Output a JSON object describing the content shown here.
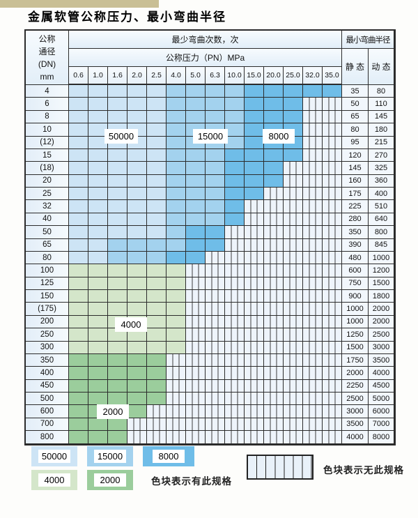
{
  "page": {
    "title": "金属软管公称压力、最小弯曲半径"
  },
  "table": {
    "header": {
      "dn_lines": [
        "公称",
        "通径",
        "(DN)",
        "mm"
      ],
      "cycles": "最少弯曲次数，次",
      "pressure": "公称压力（PN）MPa",
      "radius": "最小弯曲半径",
      "static": "静 态",
      "dynamic": "动 态"
    },
    "pressures": [
      "0.6",
      "1.0",
      "1.6",
      "2.0",
      "2.5",
      "4.0",
      "5.0",
      "6.3",
      "10.0",
      "15.0",
      "20.0",
      "25.0",
      "32.0",
      "35.0"
    ],
    "rows": [
      {
        "dn": "4",
        "spans": [
          [
            "c50",
            5
          ],
          [
            "c15",
            4
          ],
          [
            "c8",
            5
          ]
        ],
        "static": "35",
        "dynamic": "80"
      },
      {
        "dn": "6",
        "spans": [
          [
            "c50",
            5
          ],
          [
            "c15",
            4
          ],
          [
            "c8",
            3
          ],
          [
            "no",
            2
          ]
        ],
        "static": "50",
        "dynamic": "110"
      },
      {
        "dn": "8",
        "spans": [
          [
            "c50",
            5
          ],
          [
            "c15",
            4
          ],
          [
            "c8",
            3
          ],
          [
            "no",
            2
          ]
        ],
        "static": "65",
        "dynamic": "145"
      },
      {
        "dn": "10",
        "spans": [
          [
            "c50",
            5
          ],
          [
            "c15",
            4
          ],
          [
            "c8",
            3
          ],
          [
            "no",
            2
          ]
        ],
        "static": "80",
        "dynamic": "180"
      },
      {
        "dn": "(12)",
        "spans": [
          [
            "c50",
            5
          ],
          [
            "c15",
            4
          ],
          [
            "c8",
            3
          ],
          [
            "no",
            2
          ]
        ],
        "static": "95",
        "dynamic": "215"
      },
      {
        "dn": "15",
        "spans": [
          [
            "c50",
            5
          ],
          [
            "c15",
            3
          ],
          [
            "c8",
            4
          ],
          [
            "no",
            2
          ]
        ],
        "static": "120",
        "dynamic": "270"
      },
      {
        "dn": "(18)",
        "spans": [
          [
            "c50",
            5
          ],
          [
            "c15",
            3
          ],
          [
            "c8",
            3
          ],
          [
            "no",
            3
          ]
        ],
        "static": "145",
        "dynamic": "325"
      },
      {
        "dn": "20",
        "spans": [
          [
            "c50",
            5
          ],
          [
            "c15",
            3
          ],
          [
            "c8",
            3
          ],
          [
            "no",
            3
          ]
        ],
        "static": "160",
        "dynamic": "360"
      },
      {
        "dn": "25",
        "spans": [
          [
            "c50",
            5
          ],
          [
            "c15",
            3
          ],
          [
            "c8",
            2
          ],
          [
            "no",
            4
          ]
        ],
        "static": "175",
        "dynamic": "400"
      },
      {
        "dn": "32",
        "spans": [
          [
            "c50",
            5
          ],
          [
            "c15",
            3
          ],
          [
            "c8",
            1
          ],
          [
            "no",
            5
          ]
        ],
        "static": "225",
        "dynamic": "510"
      },
      {
        "dn": "40",
        "spans": [
          [
            "c50",
            5
          ],
          [
            "c15",
            3
          ],
          [
            "c8",
            1
          ],
          [
            "no",
            5
          ]
        ],
        "static": "280",
        "dynamic": "640"
      },
      {
        "dn": "50",
        "spans": [
          [
            "c50",
            5
          ],
          [
            "c15",
            1
          ],
          [
            "c8",
            2
          ],
          [
            "no",
            6
          ]
        ],
        "static": "350",
        "dynamic": "800"
      },
      {
        "dn": "65",
        "spans": [
          [
            "c50",
            2
          ],
          [
            "c15",
            4
          ],
          [
            "c8",
            2
          ],
          [
            "no",
            6
          ]
        ],
        "static": "390",
        "dynamic": "845"
      },
      {
        "dn": "80",
        "spans": [
          [
            "c50",
            2
          ],
          [
            "c15",
            3
          ],
          [
            "c8",
            2
          ],
          [
            "no",
            7
          ]
        ],
        "static": "480",
        "dynamic": "1000"
      },
      {
        "dn": "100",
        "spans": [
          [
            "c4",
            6
          ],
          [
            "no",
            8
          ]
        ],
        "static": "600",
        "dynamic": "1200"
      },
      {
        "dn": "125",
        "spans": [
          [
            "c4",
            6
          ],
          [
            "no",
            8
          ]
        ],
        "static": "750",
        "dynamic": "1500"
      },
      {
        "dn": "150",
        "spans": [
          [
            "c4",
            6
          ],
          [
            "no",
            8
          ]
        ],
        "static": "900",
        "dynamic": "1800"
      },
      {
        "dn": "(175)",
        "spans": [
          [
            "c4",
            6
          ],
          [
            "no",
            8
          ]
        ],
        "static": "1000",
        "dynamic": "2000"
      },
      {
        "dn": "200",
        "spans": [
          [
            "c4",
            6
          ],
          [
            "no",
            8
          ]
        ],
        "static": "1000",
        "dynamic": "2000"
      },
      {
        "dn": "250",
        "spans": [
          [
            "c4",
            6
          ],
          [
            "no",
            8
          ]
        ],
        "static": "1250",
        "dynamic": "2500"
      },
      {
        "dn": "300",
        "spans": [
          [
            "c4",
            6
          ],
          [
            "no",
            8
          ]
        ],
        "static": "1500",
        "dynamic": "3000"
      },
      {
        "dn": "350",
        "spans": [
          [
            "c2",
            5
          ],
          [
            "no",
            9
          ]
        ],
        "static": "1750",
        "dynamic": "3500"
      },
      {
        "dn": "400",
        "spans": [
          [
            "c2",
            5
          ],
          [
            "no",
            9
          ]
        ],
        "static": "2000",
        "dynamic": "4000"
      },
      {
        "dn": "450",
        "spans": [
          [
            "c2",
            5
          ],
          [
            "no",
            9
          ]
        ],
        "static": "2250",
        "dynamic": "4500"
      },
      {
        "dn": "500",
        "spans": [
          [
            "c2",
            5
          ],
          [
            "no",
            9
          ]
        ],
        "static": "2500",
        "dynamic": "5000"
      },
      {
        "dn": "600",
        "spans": [
          [
            "c2",
            4
          ],
          [
            "no",
            10
          ]
        ],
        "static": "3000",
        "dynamic": "6000"
      },
      {
        "dn": "700",
        "spans": [
          [
            "c2",
            3
          ],
          [
            "no",
            11
          ]
        ],
        "static": "3500",
        "dynamic": "7000"
      },
      {
        "dn": "800",
        "spans": [
          [
            "c2",
            3
          ],
          [
            "no",
            11
          ]
        ],
        "static": "4000",
        "dynamic": "8000"
      }
    ],
    "overlays": [
      {
        "text": "50000"
      },
      {
        "text": "15000"
      },
      {
        "text": "8000"
      },
      {
        "text": "4000"
      },
      {
        "text": "2000"
      }
    ]
  },
  "legend": {
    "swatches": [
      {
        "label": "50000",
        "key": "c50"
      },
      {
        "label": "15000",
        "key": "c15"
      },
      {
        "label": "8000",
        "key": "c8"
      },
      {
        "label": "4000",
        "key": "c4"
      },
      {
        "label": "2000",
        "key": "c2"
      }
    ],
    "has_text": "色块表示有此规格",
    "none_text": "色块表示无此规格"
  },
  "colors": {
    "c50": "#cde4f5",
    "c15": "#a3d2ee",
    "c8": "#6fbde8",
    "c4": "#d4e6ca",
    "c2": "#9bcd9c",
    "hatch": "#eef4fb"
  }
}
